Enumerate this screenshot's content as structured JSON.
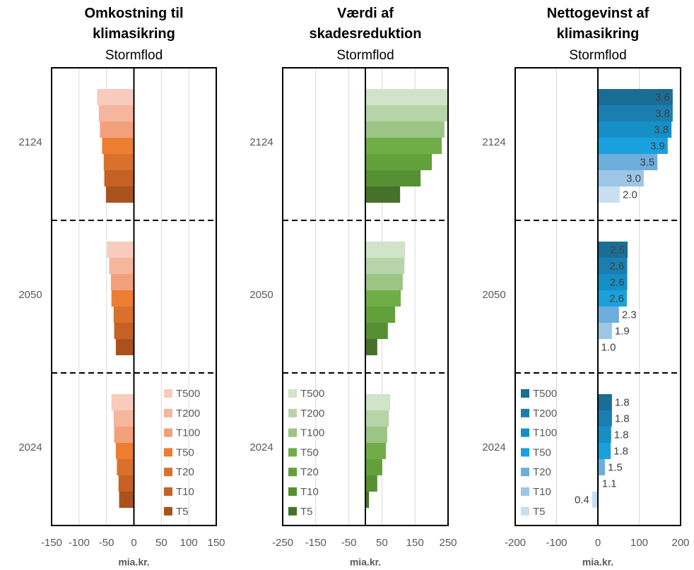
{
  "chart_data": [
    {
      "type": "bar",
      "orientation": "horizontal",
      "title": "Omkostning til klimasikring",
      "subtitle": "Stormflod",
      "xlabel": "mia.kr.",
      "categories": [
        "2124",
        "2050",
        "2024"
      ],
      "series": [
        {
          "name": "T500",
          "color": "#f8cbbd",
          "values": [
            -67,
            -49,
            -41
          ]
        },
        {
          "name": "T200",
          "color": "#f5b69d",
          "values": [
            -64,
            -45,
            -37
          ]
        },
        {
          "name": "T100",
          "color": "#f2a07c",
          "values": [
            -62,
            -42,
            -36
          ]
        },
        {
          "name": "T50",
          "color": "#ed7d31",
          "values": [
            -58,
            -41,
            -33
          ]
        },
        {
          "name": "T20",
          "color": "#d9712c",
          "values": [
            -55,
            -37,
            -31
          ]
        },
        {
          "name": "T10",
          "color": "#c56125",
          "values": [
            -54,
            -36,
            -28
          ]
        },
        {
          "name": "T5",
          "color": "#a9521e",
          "values": [
            -51,
            -33,
            -27
          ]
        }
      ],
      "xlim": [
        -150,
        150
      ],
      "xticks": [
        -150,
        -100,
        -50,
        0,
        50,
        100,
        150
      ],
      "grid": true,
      "legend": "lower right"
    },
    {
      "type": "bar",
      "orientation": "horizontal",
      "title": "Værdi af skadesreduktion",
      "subtitle": "Stormflod",
      "xlabel": "mia.kr.",
      "categories": [
        "2124",
        "2050",
        "2024"
      ],
      "series": [
        {
          "name": "T500",
          "color": "#d1e3c8",
          "values": [
            250,
            120,
            75
          ]
        },
        {
          "name": "T200",
          "color": "#b7d4a8",
          "values": [
            248,
            118,
            71
          ]
        },
        {
          "name": "T100",
          "color": "#9bc485",
          "values": [
            239,
            113,
            66
          ]
        },
        {
          "name": "T50",
          "color": "#70ad47",
          "values": [
            231,
            107,
            62
          ]
        },
        {
          "name": "T20",
          "color": "#62a03c",
          "values": [
            201,
            90,
            51
          ]
        },
        {
          "name": "T10",
          "color": "#578f35",
          "values": [
            167,
            68,
            36
          ]
        },
        {
          "name": "T5",
          "color": "#46712b",
          "values": [
            105,
            36,
            11
          ]
        }
      ],
      "xlim": [
        -250,
        250
      ],
      "xticks": [
        -250,
        -150,
        -50,
        50,
        150,
        250
      ],
      "grid": true,
      "legend": "lower left"
    },
    {
      "type": "bar",
      "orientation": "horizontal",
      "title": "Nettogevinst af klimasikring",
      "subtitle": "Stormflod",
      "xlabel": "mia.kr.",
      "categories": [
        "2124",
        "2050",
        "2024"
      ],
      "series": [
        {
          "name": "T500",
          "color": "#1a6e96",
          "values": [
            181,
            72,
            34
          ],
          "bar_labels": [
            "3.6",
            "2.5",
            "1.8"
          ]
        },
        {
          "name": "T200",
          "color": "#1a7fb0",
          "values": [
            181,
            71,
            34
          ],
          "bar_labels": [
            "3.8",
            "2.6",
            "1.8"
          ]
        },
        {
          "name": "T100",
          "color": "#168fc7",
          "values": [
            178,
            71,
            32
          ],
          "bar_labels": [
            "3.8",
            "2.6",
            "1.8"
          ]
        },
        {
          "name": "T50",
          "color": "#1aa0dc",
          "values": [
            169,
            70,
            31
          ],
          "bar_labels": [
            "3.9",
            "2.6",
            "1.8"
          ]
        },
        {
          "name": "T20",
          "color": "#6daedc",
          "values": [
            144,
            51,
            17
          ],
          "bar_labels": [
            "3.5",
            "2.3",
            "1.5"
          ]
        },
        {
          "name": "T10",
          "color": "#9dc6e6",
          "values": [
            111,
            34,
            3
          ],
          "bar_labels": [
            "3.0",
            "1.9",
            "1.1"
          ]
        },
        {
          "name": "T5",
          "color": "#c9dff0",
          "values": [
            53,
            1,
            -14
          ],
          "bar_labels": [
            "2.0",
            "1.0",
            "0.4"
          ]
        }
      ],
      "xlim": [
        -200,
        200
      ],
      "xticks": [
        -200,
        -100,
        0,
        100,
        200
      ],
      "grid": true,
      "legend": "lower left"
    }
  ]
}
